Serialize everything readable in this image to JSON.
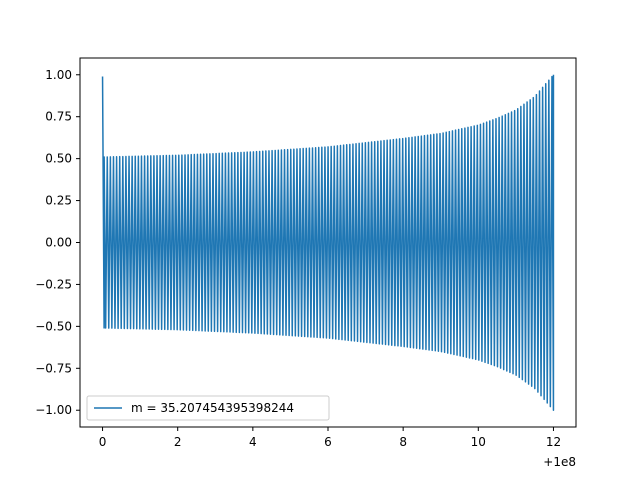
{
  "chart_data": {
    "type": "line",
    "title": "",
    "xlabel": "",
    "ylabel": "",
    "xlim": [
      -0.6,
      12.6
    ],
    "ylim": [
      -1.1,
      1.1
    ],
    "x_offset_label": "+1e8",
    "x_ticks": [
      0,
      2,
      4,
      6,
      8,
      10,
      12
    ],
    "x_tick_labels": [
      "0",
      "2",
      "4",
      "6",
      "8",
      "10",
      "12"
    ],
    "y_ticks": [
      -1.0,
      -0.75,
      -0.5,
      -0.25,
      0.0,
      0.25,
      0.5,
      0.75,
      1.0
    ],
    "y_tick_labels": [
      "−1.00",
      "−0.75",
      "−0.50",
      "−0.25",
      "0.00",
      "0.25",
      "0.50",
      "0.75",
      "1.00"
    ],
    "grid": false,
    "legend_position": "lower-left",
    "series": [
      {
        "name": "m = 35.207454395398244",
        "color": "#1f77b4",
        "x_range": [
          0,
          12
        ],
        "cycles": 145,
        "initial_peak": 0.99,
        "envelope_x": [
          0.1,
          2,
          4,
          6,
          8,
          9,
          10,
          10.5,
          11,
          11.5,
          12
        ],
        "envelope_amplitude": [
          0.51,
          0.52,
          0.54,
          0.57,
          0.62,
          0.65,
          0.7,
          0.74,
          0.79,
          0.87,
          1.0
        ]
      }
    ]
  }
}
